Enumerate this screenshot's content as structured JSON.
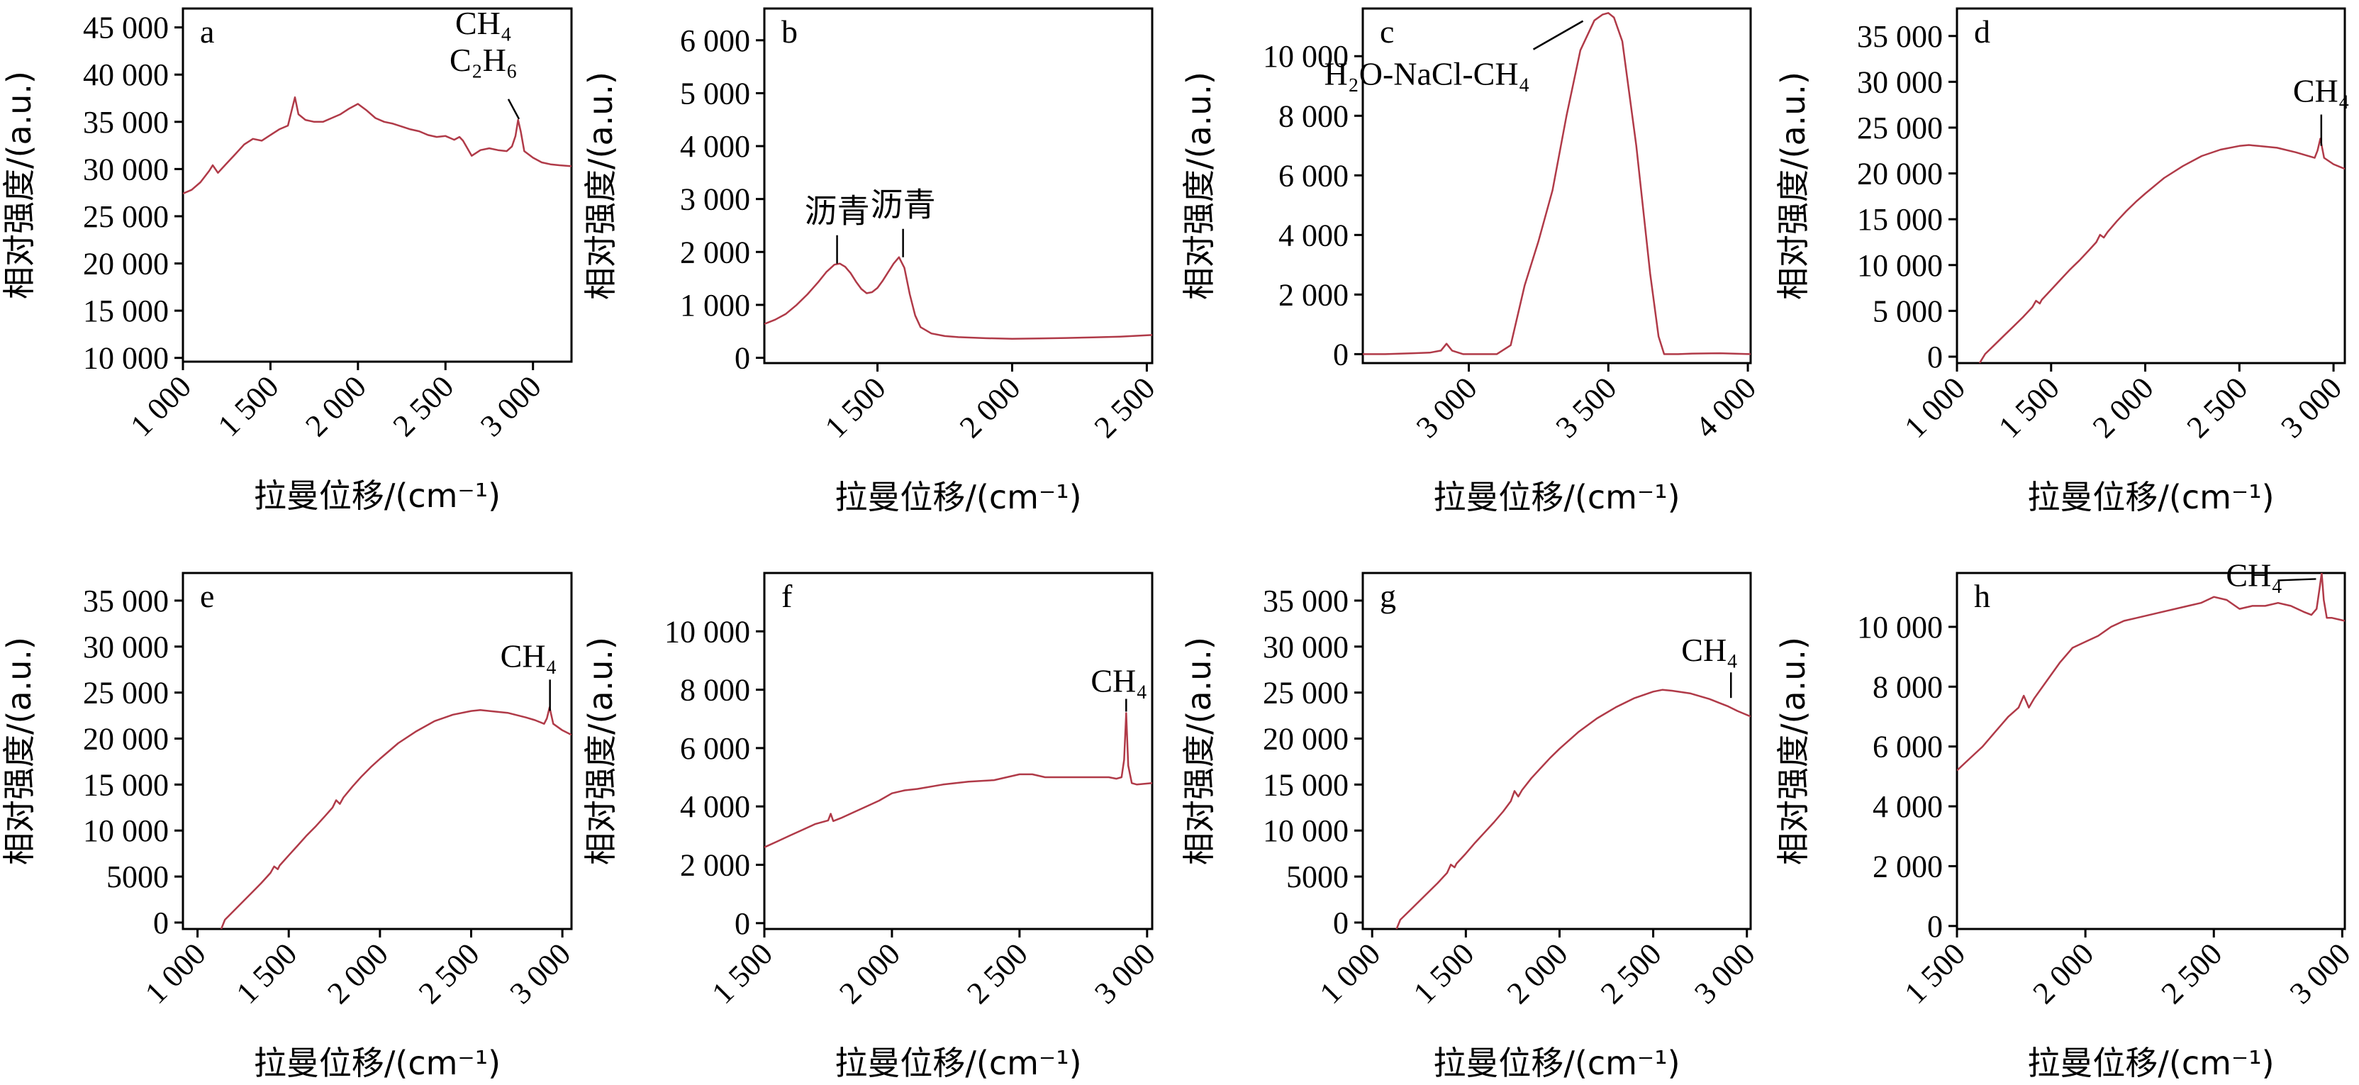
{
  "chart_data": [
    {
      "id": "a",
      "type": "line",
      "panel_label": "a",
      "xlabel": "拉曼位移/(cm⁻¹)",
      "ylabel": "相对强度/(a.u.)",
      "xlim": [
        1000,
        3220
      ],
      "ylim": [
        9600,
        47000
      ],
      "xticks": [
        1000,
        1500,
        2000,
        2500,
        3000
      ],
      "xtick_labels": [
        "1 000",
        "1 500",
        "2 000",
        "2 500",
        "3 000"
      ],
      "yticks": [
        10000,
        15000,
        20000,
        25000,
        30000,
        35000,
        40000,
        45000
      ],
      "ytick_labels": [
        "10 000",
        "15 000",
        "20 000",
        "25 000",
        "30 000",
        "35 000",
        "40 000",
        "45 000"
      ],
      "series": [
        {
          "x": [
            1000,
            1050,
            1100,
            1150,
            1170,
            1200,
            1250,
            1300,
            1350,
            1400,
            1450,
            1500,
            1550,
            1600,
            1640,
            1660,
            1700,
            1750,
            1800,
            1850,
            1900,
            1950,
            2000,
            2050,
            2100,
            2150,
            2200,
            2250,
            2300,
            2350,
            2400,
            2450,
            2500,
            2550,
            2580,
            2600,
            2650,
            2700,
            2750,
            2800,
            2850,
            2880,
            2900,
            2915,
            2930,
            2950,
            3000,
            3050,
            3100,
            3150,
            3220
          ],
          "y": [
            27400,
            27800,
            28600,
            29800,
            30400,
            29600,
            30600,
            31600,
            32600,
            33200,
            33000,
            33600,
            34200,
            34600,
            37600,
            35800,
            35200,
            35000,
            35000,
            35400,
            35800,
            36400,
            36900,
            36200,
            35400,
            35000,
            34800,
            34500,
            34200,
            34000,
            33600,
            33400,
            33500,
            33100,
            33400,
            33000,
            31400,
            32000,
            32200,
            32000,
            31900,
            32400,
            33500,
            35200,
            34000,
            31900,
            31200,
            30700,
            30500,
            30400,
            30300
          ]
        }
      ],
      "annotations": [
        {
          "lines": [
            "CH₄",
            "C₂H₆"
          ],
          "x": 2920,
          "y": 35300
        }
      ]
    },
    {
      "id": "b",
      "type": "line",
      "panel_label": "b",
      "xlabel": "拉曼位移/(cm⁻¹)",
      "ylabel": "相对强度/(a.u.)",
      "xlim": [
        1080,
        2520
      ],
      "ylim": [
        -100,
        6600
      ],
      "xticks": [
        1500,
        2000,
        2500
      ],
      "xtick_labels": [
        "1 500",
        "2 000",
        "2 500"
      ],
      "yticks": [
        0,
        1000,
        2000,
        3000,
        4000,
        5000,
        6000
      ],
      "ytick_labels": [
        "0",
        "1 000",
        "2 000",
        "3 000",
        "4 000",
        "5 000",
        "6 000"
      ],
      "series": [
        {
          "x": [
            1080,
            1120,
            1160,
            1200,
            1240,
            1280,
            1310,
            1340,
            1360,
            1380,
            1400,
            1420,
            1440,
            1460,
            1480,
            1500,
            1520,
            1540,
            1560,
            1580,
            1600,
            1620,
            1640,
            1660,
            1700,
            1750,
            1800,
            1900,
            2000,
            2100,
            2200,
            2300,
            2400,
            2520
          ],
          "y": [
            640,
            720,
            830,
            1000,
            1200,
            1430,
            1620,
            1760,
            1780,
            1720,
            1600,
            1440,
            1300,
            1220,
            1240,
            1320,
            1460,
            1620,
            1780,
            1900,
            1700,
            1200,
            800,
            580,
            460,
            410,
            390,
            370,
            360,
            365,
            375,
            385,
            400,
            430
          ]
        }
      ],
      "annotations": [
        {
          "lines": [
            "沥青"
          ],
          "x": 1350,
          "y": 1780
        },
        {
          "lines": [
            "沥青"
          ],
          "x": 1595,
          "y": 1900
        }
      ]
    },
    {
      "id": "c",
      "type": "line",
      "panel_label": "c",
      "xlabel": "拉曼位移/(cm⁻¹)",
      "ylabel": "相对强度/(a.u.)",
      "xlim": [
        2620,
        4010
      ],
      "ylim": [
        -300,
        11600
      ],
      "xticks": [
        3000,
        3500,
        4000
      ],
      "xtick_labels": [
        "3 000",
        "3 500",
        "4 000"
      ],
      "yticks": [
        0,
        2000,
        4000,
        6000,
        8000,
        10000
      ],
      "ytick_labels": [
        "0",
        "2 000",
        "4 000",
        "6 000",
        "8 000",
        "10 000"
      ],
      "series": [
        {
          "x": [
            2620,
            2700,
            2800,
            2860,
            2900,
            2920,
            2940,
            2980,
            3050,
            3100,
            3150,
            3200,
            3250,
            3300,
            3350,
            3400,
            3450,
            3480,
            3500,
            3520,
            3550,
            3600,
            3650,
            3680,
            3700,
            3750,
            3800,
            3900,
            4010
          ],
          "y": [
            0,
            0,
            30,
            50,
            120,
            350,
            120,
            0,
            0,
            0,
            300,
            2300,
            3800,
            5500,
            8000,
            10200,
            11200,
            11400,
            11450,
            11300,
            10500,
            7000,
            2700,
            600,
            0,
            0,
            20,
            30,
            0
          ]
        }
      ],
      "annotations": [
        {
          "lines": [
            "H₂O-NaCl-CH₄"
          ],
          "x": 3460,
          "y": 11300
        }
      ]
    },
    {
      "id": "d",
      "type": "line",
      "panel_label": "d",
      "xlabel": "拉曼位移/(cm⁻¹)",
      "ylabel": "相对强度/(a.u.)",
      "xlim": [
        1000,
        3060
      ],
      "ylim": [
        -700,
        38000
      ],
      "xticks": [
        1000,
        1500,
        2000,
        2500,
        3000
      ],
      "xtick_labels": [
        "1 000",
        "1 500",
        "2 000",
        "2 500",
        "3 000"
      ],
      "yticks": [
        0,
        5000,
        10000,
        15000,
        20000,
        25000,
        30000,
        35000
      ],
      "ytick_labels": [
        "0",
        "5 000",
        "10 000",
        "15 000",
        "20 000",
        "25 000",
        "30 000",
        "35 000"
      ],
      "series": [
        {
          "x": [
            1120,
            1150,
            1200,
            1250,
            1300,
            1350,
            1400,
            1420,
            1440,
            1450,
            1500,
            1550,
            1600,
            1650,
            1700,
            1740,
            1760,
            1780,
            1800,
            1850,
            1900,
            1950,
            2000,
            2100,
            2200,
            2300,
            2400,
            2500,
            2550,
            2600,
            2700,
            2800,
            2850,
            2900,
            2915,
            2930,
            2950,
            3000,
            3060
          ],
          "y": [
            -700,
            300,
            1300,
            2300,
            3300,
            4300,
            5400,
            6100,
            5800,
            6200,
            7300,
            8400,
            9500,
            10500,
            11600,
            12500,
            13300,
            13000,
            13600,
            14800,
            15900,
            16900,
            17800,
            19500,
            20800,
            21900,
            22600,
            23000,
            23100,
            23000,
            22800,
            22300,
            22000,
            21700,
            22500,
            23800,
            21700,
            21000,
            20500
          ]
        }
      ],
      "annotations": [
        {
          "lines": [
            "CH₄"
          ],
          "x": 2935,
          "y": 22400
        }
      ]
    },
    {
      "id": "e",
      "type": "line",
      "panel_label": "e",
      "xlabel": "拉曼位移/(cm⁻¹)",
      "ylabel": "相对强度/(a.u.)",
      "xlim": [
        920,
        3050
      ],
      "ylim": [
        -700,
        38000
      ],
      "xticks": [
        1000,
        1500,
        2000,
        2500,
        3000
      ],
      "xtick_labels": [
        "1 000",
        "1 500",
        "2 000",
        "2 500",
        "3 000"
      ],
      "yticks": [
        0,
        5000,
        10000,
        15000,
        20000,
        25000,
        30000,
        35000
      ],
      "ytick_labels": [
        "0",
        "5000",
        "10 000",
        "15 000",
        "20 000",
        "25 000",
        "30 000",
        "35 000"
      ],
      "series": [
        {
          "x": [
            1130,
            1150,
            1200,
            1250,
            1300,
            1350,
            1400,
            1420,
            1440,
            1450,
            1500,
            1550,
            1600,
            1650,
            1700,
            1740,
            1760,
            1780,
            1800,
            1850,
            1900,
            1950,
            2000,
            2100,
            2200,
            2300,
            2400,
            2500,
            2550,
            2600,
            2700,
            2800,
            2850,
            2900,
            2915,
            2930,
            2950,
            3000,
            3050
          ],
          "y": [
            -700,
            300,
            1300,
            2300,
            3300,
            4300,
            5400,
            6100,
            5800,
            6200,
            7300,
            8400,
            9500,
            10500,
            11600,
            12500,
            13300,
            12900,
            13600,
            14800,
            15900,
            16900,
            17800,
            19500,
            20800,
            21900,
            22600,
            23000,
            23100,
            23000,
            22800,
            22300,
            22000,
            21600,
            22200,
            23400,
            21600,
            20900,
            20400
          ]
        }
      ],
      "annotations": [
        {
          "lines": [
            "CH₄"
          ],
          "x": 2932,
          "y": 22400
        }
      ]
    },
    {
      "id": "f",
      "type": "line",
      "panel_label": "f",
      "xlabel": "拉曼位移/(cm⁻¹)",
      "ylabel": "相对强度/(a.u.)",
      "xlim": [
        1500,
        3020
      ],
      "ylim": [
        -200,
        12000
      ],
      "xticks": [
        1500,
        2000,
        2500,
        3000
      ],
      "xtick_labels": [
        "1 500",
        "2 000",
        "2 500",
        "3 000"
      ],
      "yticks": [
        0,
        2000,
        4000,
        6000,
        8000,
        10000
      ],
      "ytick_labels": [
        "0",
        "2 000",
        "4 000",
        "6 000",
        "8 000",
        "10 000"
      ],
      "series": [
        {
          "x": [
            1500,
            1550,
            1600,
            1650,
            1700,
            1750,
            1760,
            1770,
            1800,
            1850,
            1900,
            1950,
            2000,
            2050,
            2100,
            2200,
            2300,
            2400,
            2500,
            2550,
            2600,
            2700,
            2800,
            2850,
            2880,
            2900,
            2910,
            2918,
            2926,
            2940,
            2960,
            3020
          ],
          "y": [
            2600,
            2800,
            3000,
            3200,
            3400,
            3520,
            3750,
            3500,
            3600,
            3800,
            4000,
            4200,
            4450,
            4550,
            4600,
            4750,
            4850,
            4900,
            5100,
            5100,
            5000,
            5000,
            5000,
            5000,
            4950,
            5000,
            5600,
            7200,
            5400,
            4800,
            4750,
            4800
          ]
        }
      ],
      "annotations": [
        {
          "lines": [
            "CH₄"
          ],
          "x": 2918,
          "y": 7200
        }
      ]
    },
    {
      "id": "g",
      "type": "line",
      "panel_label": "g",
      "xlabel": "拉曼位移/(cm⁻¹)",
      "ylabel": "相对强度/(a.u.)",
      "xlim": [
        950,
        3020
      ],
      "ylim": [
        -700,
        38000
      ],
      "xticks": [
        1000,
        1500,
        2000,
        2500,
        3000
      ],
      "xtick_labels": [
        "1 000",
        "1 500",
        "2 000",
        "2 500",
        "3 000"
      ],
      "yticks": [
        0,
        5000,
        10000,
        15000,
        20000,
        25000,
        30000,
        35000
      ],
      "ytick_labels": [
        "0",
        "5000",
        "10 000",
        "15 000",
        "20 000",
        "25 000",
        "30 000",
        "35 000"
      ],
      "series": [
        {
          "x": [
            1130,
            1150,
            1200,
            1250,
            1300,
            1350,
            1400,
            1420,
            1440,
            1450,
            1500,
            1550,
            1600,
            1650,
            1700,
            1740,
            1760,
            1780,
            1800,
            1850,
            1900,
            1950,
            2000,
            2100,
            2200,
            2300,
            2400,
            2500,
            2550,
            2600,
            2700,
            2800,
            2850,
            2900,
            2950,
            3020
          ],
          "y": [
            -700,
            300,
            1300,
            2300,
            3300,
            4300,
            5400,
            6300,
            6000,
            6400,
            7500,
            8700,
            9800,
            10900,
            12100,
            13200,
            14300,
            13700,
            14400,
            15700,
            16800,
            17900,
            18900,
            20700,
            22200,
            23400,
            24400,
            25100,
            25300,
            25200,
            24900,
            24300,
            23900,
            23500,
            23000,
            22400
          ]
        }
      ],
      "annotations": [
        {
          "lines": [
            "CH₄"
          ],
          "x": 2915,
          "y": 23800
        }
      ]
    },
    {
      "id": "h",
      "type": "line",
      "panel_label": "h",
      "xlabel": "拉曼位移/(cm⁻¹)",
      "ylabel": "相对强度/(a.u.)",
      "xlim": [
        1500,
        3010
      ],
      "ylim": [
        -100,
        11800
      ],
      "xticks": [
        1500,
        2000,
        2500,
        3000
      ],
      "xtick_labels": [
        "1 500",
        "2 000",
        "2 500",
        "3 000"
      ],
      "yticks": [
        0,
        2000,
        4000,
        6000,
        8000,
        10000
      ],
      "ytick_labels": [
        "0",
        "2 000",
        "4 000",
        "6 000",
        "8 000",
        "10 000"
      ],
      "series": [
        {
          "x": [
            1500,
            1550,
            1600,
            1650,
            1700,
            1740,
            1760,
            1780,
            1800,
            1850,
            1900,
            1950,
            2000,
            2050,
            2100,
            2150,
            2200,
            2300,
            2400,
            2450,
            2500,
            2550,
            2600,
            2650,
            2700,
            2750,
            2800,
            2850,
            2880,
            2900,
            2912,
            2920,
            2928,
            2940,
            2960,
            3010
          ],
          "y": [
            5200,
            5600,
            6000,
            6500,
            7000,
            7300,
            7700,
            7300,
            7600,
            8200,
            8800,
            9300,
            9500,
            9700,
            10000,
            10200,
            10300,
            10500,
            10700,
            10800,
            11000,
            10900,
            10600,
            10700,
            10700,
            10800,
            10700,
            10500,
            10400,
            10600,
            11300,
            11800,
            10900,
            10300,
            10300,
            10200
          ]
        }
      ],
      "annotations": [
        {
          "lines": [
            "CH₄"
          ],
          "x": 2920,
          "y": 11600
        }
      ]
    }
  ]
}
